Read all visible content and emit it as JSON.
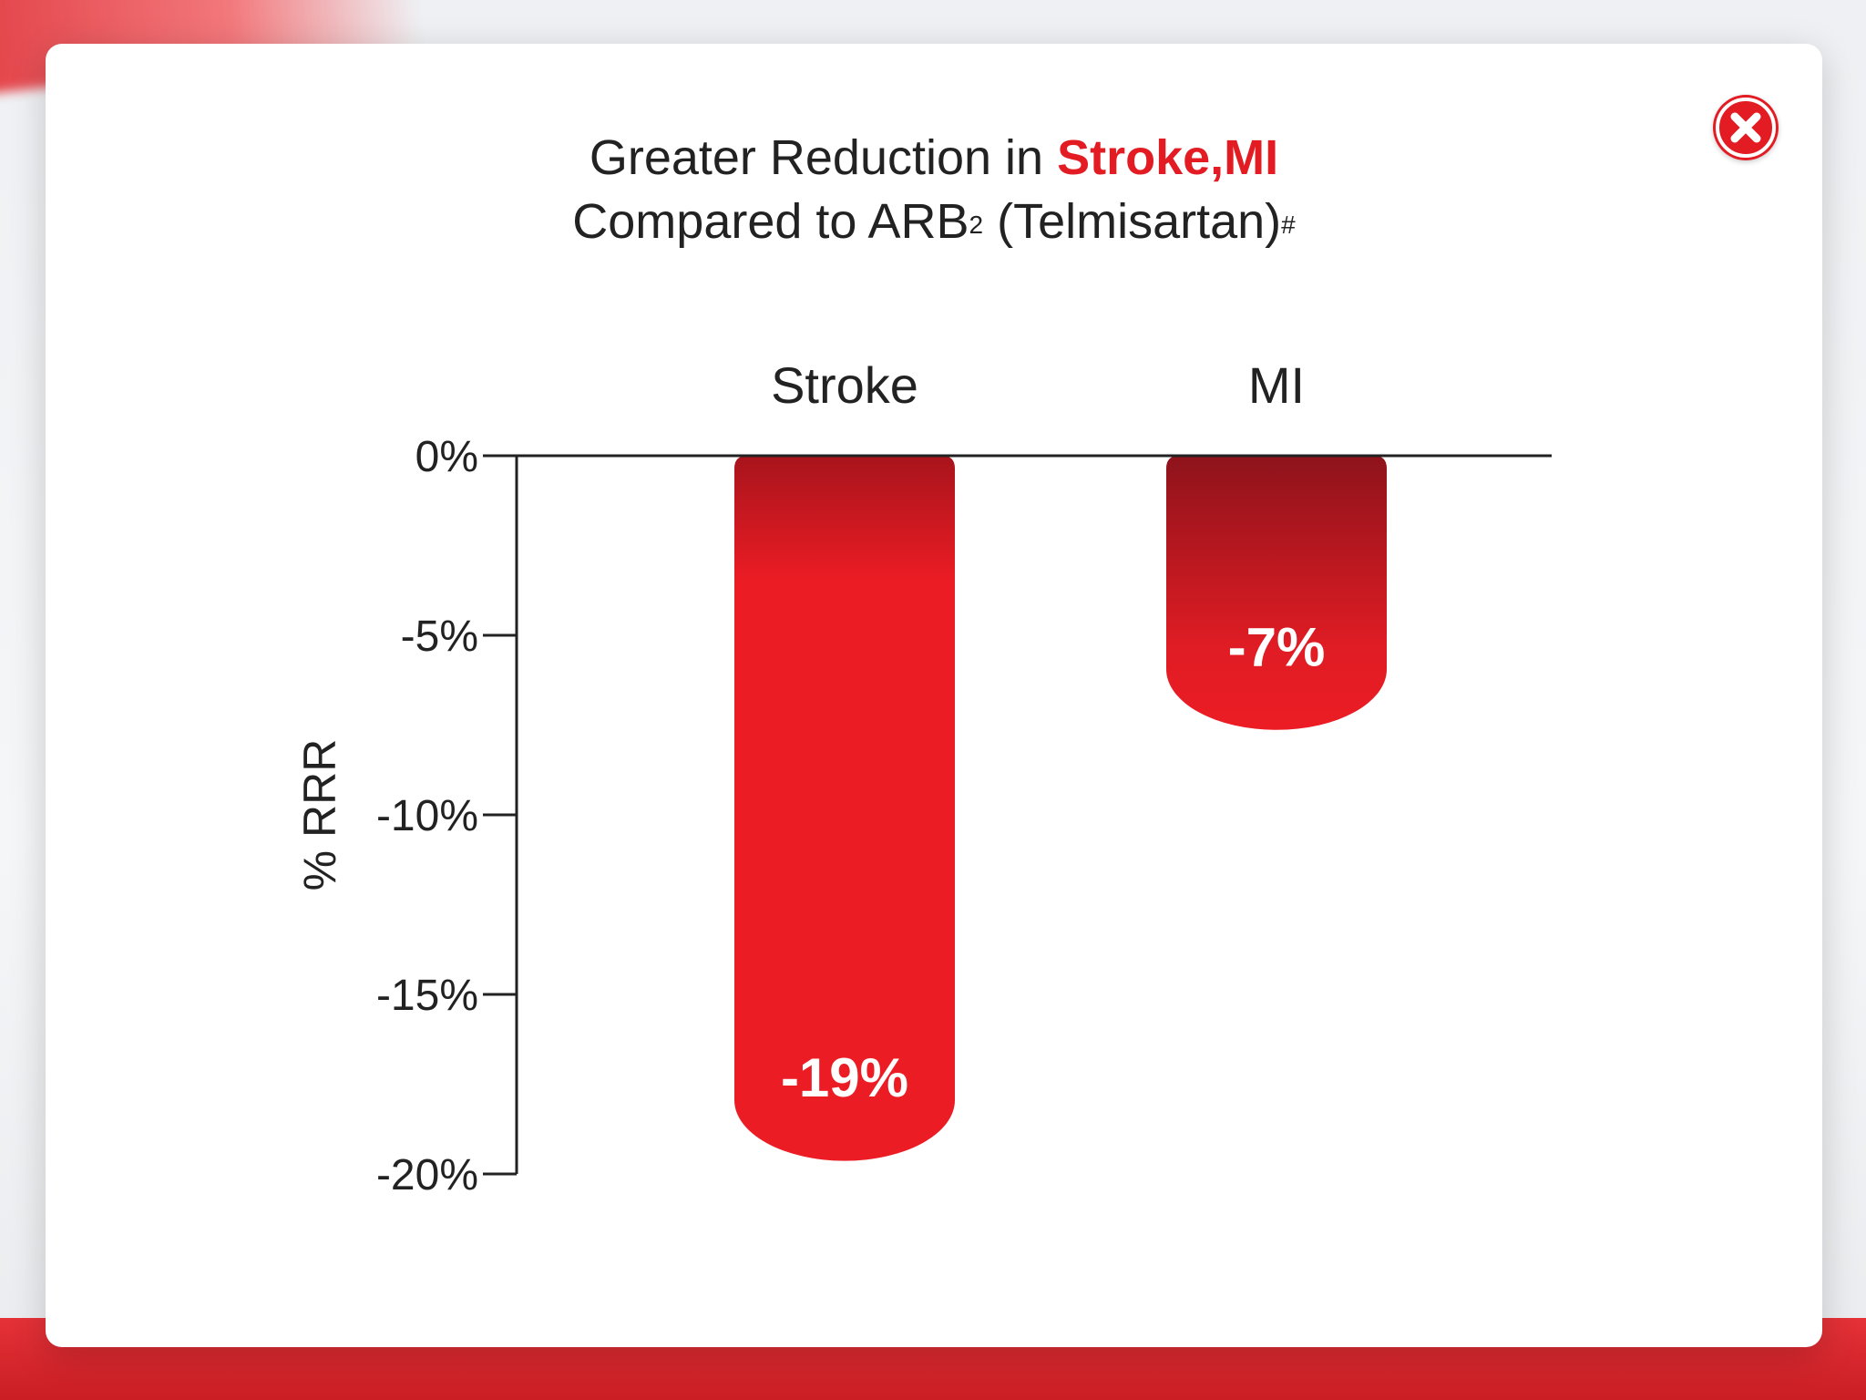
{
  "title": {
    "line1_pre": "Greater Reduction in ",
    "line1_highlight": "Stroke,MI",
    "line2_pre": "Compared to ARB",
    "line2_sup": "2",
    "line2_post": " (Telmisartan)",
    "line2_mark": "#"
  },
  "close_icon": "close-icon",
  "colors": {
    "accent": "#e31c24",
    "dark_red": "#8e131b"
  },
  "chart_data": {
    "type": "bar",
    "categories": [
      "Stroke",
      "MI"
    ],
    "values": [
      -19,
      -7
    ],
    "value_labels": [
      "-19%",
      "-7%"
    ],
    "ylabel": "% RRR",
    "ylim": [
      -20,
      0
    ],
    "yticks": [
      0,
      -5,
      -10,
      -15,
      -20
    ],
    "ytick_labels": [
      "0%",
      "-5%",
      "-10%",
      "-15%",
      "-20%"
    ],
    "grid": false,
    "legend": "none"
  }
}
